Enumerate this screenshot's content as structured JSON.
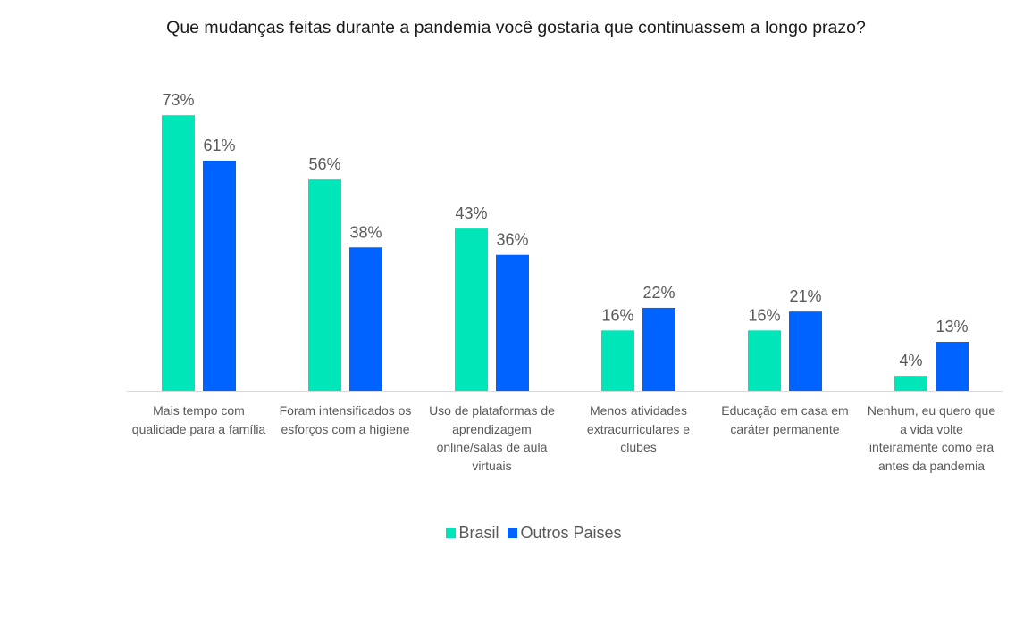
{
  "chart_data": {
    "type": "bar",
    "title": "Que mudanças feitas durante a pandemia você gostaria que continuassem a longo prazo?",
    "categories": [
      [
        "Mais tempo com",
        "qualidade para a família"
      ],
      [
        "Foram intensificados os",
        "esforços com a higiene"
      ],
      [
        "Uso de plataformas de",
        "aprendizagem",
        "online/salas de aula",
        "virtuais"
      ],
      [
        "Menos atividades",
        "extracurriculares e",
        "clubes"
      ],
      [
        "Educação em casa em",
        "caráter permanente"
      ],
      [
        "Nenhum, eu quero que",
        "a vida volte",
        "inteiramente como era",
        "antes da pandemia"
      ]
    ],
    "series": [
      {
        "name": "Brasil",
        "color": "#00E6B8",
        "values": [
          73,
          56,
          43,
          16,
          16,
          4
        ],
        "labels": [
          "73%",
          "56%",
          "43%",
          "16%",
          "16%",
          "4%"
        ]
      },
      {
        "name": "Outros Paises",
        "color": "#0062FF",
        "values": [
          61,
          38,
          36,
          22,
          21,
          13
        ],
        "labels": [
          "61%",
          "38%",
          "36%",
          "22%",
          "21%",
          "13%"
        ]
      }
    ],
    "ylim": [
      0,
      80
    ],
    "grid": false,
    "legend": "bottom"
  }
}
